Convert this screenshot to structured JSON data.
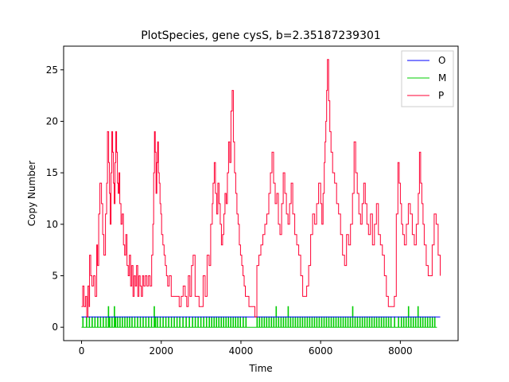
{
  "chart_data": {
    "type": "line",
    "title": "PlotSpecies, gene cysS, b=2.35187239301",
    "xlabel": "Time",
    "ylabel": "Copy Number",
    "xlim": [
      -450,
      9450
    ],
    "ylim": [
      -1.3,
      27.3
    ],
    "xticks": [
      0,
      2000,
      4000,
      6000,
      8000
    ],
    "yticks": [
      0,
      5,
      10,
      15,
      20,
      25
    ],
    "grid": false,
    "legend_position": "top-right",
    "series": [
      {
        "name": "O",
        "color": "#0000ff",
        "x": [
          0,
          9000
        ],
        "y": [
          1,
          1
        ]
      },
      {
        "name": "M",
        "color": "#00cc00",
        "spike_times": [
          30,
          120,
          190,
          260,
          330,
          400,
          470,
          540,
          610,
          670,
          700,
          760,
          820,
          850,
          900,
          960,
          1020,
          1080,
          1140,
          1200,
          1260,
          1330,
          1400,
          1470,
          1540,
          1610,
          1680,
          1750,
          1820,
          1850,
          1900,
          1970,
          2040,
          2110,
          2180,
          2250,
          2320,
          2390,
          2460,
          2540,
          2620,
          2700,
          2780,
          2850,
          2920,
          2990,
          3060,
          3130,
          3200,
          3260,
          3320,
          3380,
          3440,
          3500,
          3560,
          3620,
          3680,
          3740,
          3800,
          3860,
          3920,
          3980,
          4050,
          4120,
          4400,
          4460,
          4520,
          4580,
          4640,
          4700,
          4760,
          4820,
          4880,
          4940,
          5000,
          5060,
          5120,
          5180,
          5240,
          5300,
          5360,
          5420,
          5480,
          5540,
          5600,
          5660,
          5720,
          5780,
          5840,
          5900,
          5960,
          6020,
          6080,
          6140,
          6200,
          6260,
          6320,
          6380,
          6440,
          6500,
          6560,
          6620,
          6680,
          6740,
          6800,
          6860,
          6920,
          6980,
          7040,
          7100,
          7160,
          7220,
          7280,
          7340,
          7400,
          7460,
          7520,
          7580,
          7640,
          7700,
          7760,
          7850,
          7950,
          8020,
          8080,
          8140,
          8200,
          8260,
          8320,
          8380,
          8440,
          8500,
          8560,
          8620,
          8680,
          8740,
          8800,
          8860,
          8920
        ],
        "spike_values": [
          1,
          1,
          1,
          1,
          1,
          1,
          1,
          1,
          1,
          2,
          1,
          1,
          2,
          1,
          1,
          1,
          1,
          1,
          1,
          1,
          1,
          1,
          1,
          1,
          1,
          1,
          1,
          1,
          2,
          1,
          1,
          1,
          1,
          1,
          1,
          1,
          1,
          1,
          1,
          1,
          1,
          1,
          1,
          1,
          1,
          1,
          1,
          1,
          1,
          1,
          1,
          1,
          1,
          1,
          1,
          1,
          1,
          1,
          1,
          1,
          1,
          1,
          1,
          1,
          1,
          1,
          1,
          1,
          1,
          1,
          1,
          1,
          2,
          1,
          1,
          1,
          1,
          2,
          1,
          1,
          1,
          1,
          1,
          1,
          1,
          1,
          1,
          1,
          1,
          1,
          1,
          1,
          1,
          1,
          1,
          1,
          1,
          1,
          1,
          1,
          1,
          1,
          1,
          1,
          2,
          1,
          1,
          1,
          1,
          1,
          1,
          1,
          1,
          1,
          1,
          1,
          1,
          1,
          1,
          1,
          1,
          1,
          1,
          1,
          1,
          1,
          2,
          1,
          1,
          1,
          2,
          1,
          1,
          1,
          1,
          1,
          1,
          1
        ]
      },
      {
        "name": "P",
        "color": "#ff0033",
        "x": [
          0,
          30,
          60,
          100,
          130,
          160,
          190,
          200,
          230,
          260,
          300,
          340,
          380,
          400,
          430,
          460,
          500,
          530,
          560,
          600,
          630,
          650,
          680,
          700,
          720,
          740,
          760,
          780,
          800,
          820,
          840,
          860,
          880,
          900,
          920,
          940,
          960,
          990,
          1020,
          1050,
          1080,
          1110,
          1140,
          1170,
          1200,
          1230,
          1260,
          1290,
          1320,
          1350,
          1380,
          1410,
          1440,
          1470,
          1500,
          1530,
          1560,
          1600,
          1640,
          1680,
          1720,
          1760,
          1790,
          1810,
          1830,
          1850,
          1870,
          1890,
          1910,
          1930,
          1950,
          1970,
          1990,
          2010,
          2040,
          2070,
          2100,
          2130,
          2160,
          2200,
          2250,
          2300,
          2350,
          2400,
          2450,
          2500,
          2550,
          2600,
          2640,
          2680,
          2720,
          2760,
          2800,
          2850,
          2900,
          2950,
          3000,
          3050,
          3100,
          3150,
          3200,
          3240,
          3280,
          3300,
          3330,
          3360,
          3390,
          3420,
          3450,
          3480,
          3510,
          3540,
          3570,
          3600,
          3630,
          3660,
          3690,
          3720,
          3750,
          3780,
          3810,
          3840,
          3870,
          3900,
          3930,
          3960,
          3990,
          4020,
          4050,
          4080,
          4110,
          4150,
          4200,
          4250,
          4300,
          4350,
          4400,
          4450,
          4500,
          4550,
          4600,
          4650,
          4700,
          4740,
          4780,
          4820,
          4860,
          4900,
          4940,
          4980,
          5020,
          5060,
          5100,
          5140,
          5180,
          5220,
          5260,
          5300,
          5350,
          5400,
          5450,
          5500,
          5550,
          5600,
          5650,
          5700,
          5750,
          5800,
          5850,
          5900,
          5950,
          6000,
          6030,
          6060,
          6090,
          6110,
          6130,
          6150,
          6170,
          6200,
          6230,
          6260,
          6300,
          6350,
          6400,
          6450,
          6500,
          6550,
          6600,
          6650,
          6700,
          6750,
          6800,
          6840,
          6880,
          6920,
          6960,
          7000,
          7040,
          7080,
          7120,
          7160,
          7200,
          7250,
          7300,
          7350,
          7400,
          7450,
          7500,
          7550,
          7600,
          7650,
          7700,
          7750,
          7800,
          7850,
          7900,
          7940,
          7970,
          8000,
          8030,
          8060,
          8100,
          8150,
          8200,
          8250,
          8300,
          8350,
          8400,
          8450,
          8480,
          8510,
          8540,
          8570,
          8600,
          8650,
          8700,
          8750,
          8800,
          8850,
          8900,
          8950,
          9000
        ],
        "y": [
          2,
          4,
          2,
          3,
          1,
          4,
          2,
          7,
          5,
          4,
          5,
          3,
          8,
          6,
          11,
          14,
          12,
          9,
          7,
          11,
          14,
          19,
          16,
          13,
          10,
          15,
          19,
          17,
          14,
          12,
          16,
          19,
          17,
          14,
          13,
          15,
          12,
          10,
          11,
          8,
          7,
          9,
          6,
          5,
          7,
          4,
          6,
          3,
          5,
          4,
          6,
          3,
          5,
          4,
          3,
          5,
          4,
          5,
          4,
          5,
          4,
          7,
          10,
          15,
          19,
          17,
          13,
          16,
          18,
          15,
          14,
          12,
          11,
          9,
          8,
          7,
          6,
          5,
          4,
          5,
          3,
          3,
          3,
          3,
          2,
          3,
          4,
          3,
          2,
          5,
          3,
          6,
          7,
          3,
          3,
          2,
          2,
          5,
          3,
          7,
          6,
          10,
          12,
          14,
          16,
          13,
          11,
          14,
          12,
          10,
          8,
          9,
          11,
          13,
          12,
          15,
          18,
          16,
          21,
          23,
          18,
          15,
          13,
          11,
          10,
          8,
          7,
          6,
          5,
          4,
          3,
          3,
          2,
          2,
          2,
          1,
          6,
          7,
          8,
          9,
          10,
          11,
          13,
          15,
          17,
          14,
          12,
          13,
          10,
          9,
          12,
          15,
          13,
          11,
          10,
          12,
          14,
          11,
          9,
          8,
          7,
          5,
          3,
          3,
          4,
          6,
          9,
          11,
          10,
          12,
          14,
          12,
          10,
          13,
          16,
          18,
          20,
          23,
          26,
          22,
          19,
          17,
          15,
          14,
          12,
          11,
          9,
          7,
          6,
          9,
          8,
          10,
          13,
          18,
          15,
          13,
          11,
          10,
          12,
          14,
          12,
          10,
          9,
          11,
          8,
          10,
          12,
          9,
          8,
          7,
          5,
          3,
          2,
          2,
          2,
          3,
          11,
          16,
          14,
          12,
          10,
          9,
          8,
          10,
          12,
          11,
          9,
          8,
          10,
          13,
          17,
          14,
          12,
          10,
          8,
          6,
          5,
          5,
          8,
          11,
          10,
          7,
          5
        ]
      }
    ]
  }
}
